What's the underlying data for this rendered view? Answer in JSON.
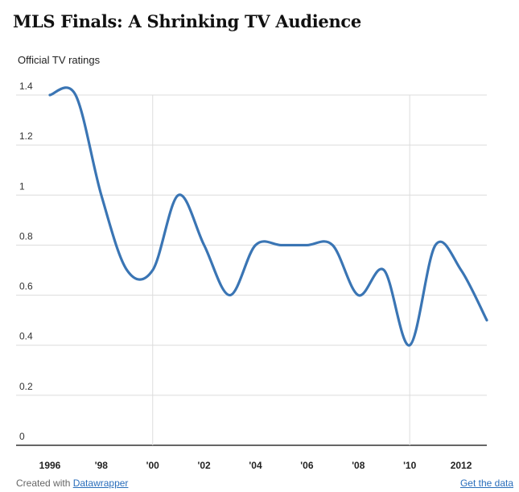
{
  "header": {
    "title": "MLS Finals: A Shrinking TV Audience"
  },
  "footer": {
    "created_with": "Created with",
    "tool_link": "Datawrapper",
    "get_data_link": "Get the data"
  },
  "chart_data": {
    "type": "line",
    "title": "MLS Finals: A Shrinking TV Audience",
    "xlabel": "",
    "ylabel": "Official TV ratings",
    "ylim": [
      0,
      1.4
    ],
    "xlim": [
      1996,
      2013
    ],
    "grid": true,
    "y_ticks": [
      0,
      0.2,
      0.4,
      0.6,
      0.8,
      1,
      1.2,
      1.4
    ],
    "y_tick_labels": [
      "0",
      "0.2",
      "0.4",
      "0.6",
      "0.8",
      "1",
      "1.2",
      "1.4"
    ],
    "x_ticks": [
      1996,
      1998,
      2000,
      2002,
      2004,
      2006,
      2008,
      2010,
      2012
    ],
    "x_tick_labels": [
      "1996",
      "'98",
      "'00",
      "'02",
      "'04",
      "'06",
      "'08",
      "'10",
      "2012"
    ],
    "x_gridlines": [
      2000,
      2010
    ],
    "line_color": "#3a75b4",
    "series": [
      {
        "x": [
          1996,
          1997,
          1998,
          1999,
          2000,
          2001,
          2002,
          2003,
          2004,
          2005,
          2006,
          2007,
          2008,
          2009,
          2010,
          2011,
          2012,
          2013
        ],
        "values": [
          1.4,
          1.4,
          1.0,
          0.7,
          0.7,
          1.0,
          0.8,
          0.6,
          0.8,
          0.8,
          0.8,
          0.8,
          0.6,
          0.7,
          0.4,
          0.8,
          0.7,
          0.5
        ]
      }
    ]
  }
}
